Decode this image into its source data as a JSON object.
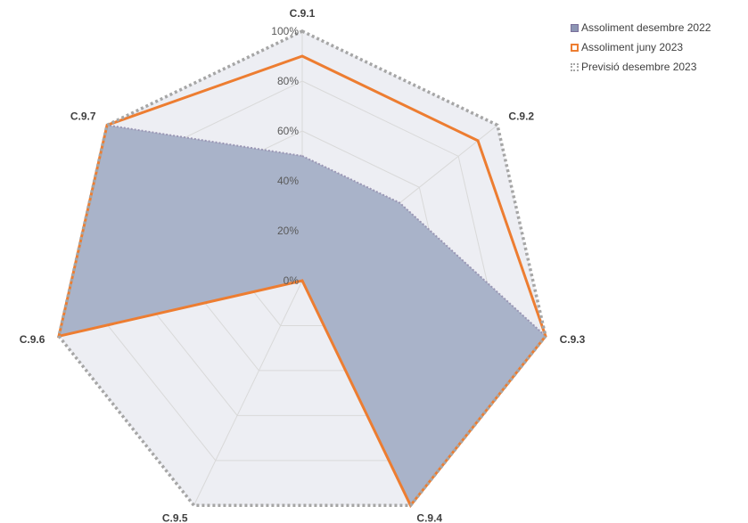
{
  "chart_data": {
    "type": "radar",
    "categories": [
      "C.9.1",
      "C.9.2",
      "C.9.3",
      "C.9.4",
      "C.9.5",
      "C.9.6",
      "C.9.7"
    ],
    "rlim": [
      0,
      100
    ],
    "rticks": [
      "0%",
      "20%",
      "40%",
      "60%",
      "80%",
      "100%"
    ],
    "grid": true,
    "legend_position": "top-right",
    "series": [
      {
        "name": "Assoliment desembre 2022",
        "values": [
          50,
          50,
          100,
          100,
          0,
          100,
          100
        ],
        "color": "#A9B3C9",
        "style": "filled"
      },
      {
        "name": "Assoliment juny 2023",
        "values": [
          90,
          90,
          100,
          100,
          0,
          100,
          100
        ],
        "color": "#ED7D31",
        "style": "line"
      },
      {
        "name": "Previsió desembre 2023",
        "values": [
          100,
          100,
          100,
          100,
          100,
          100,
          100
        ],
        "color": "#A6A6A6",
        "style": "dotted"
      }
    ]
  }
}
